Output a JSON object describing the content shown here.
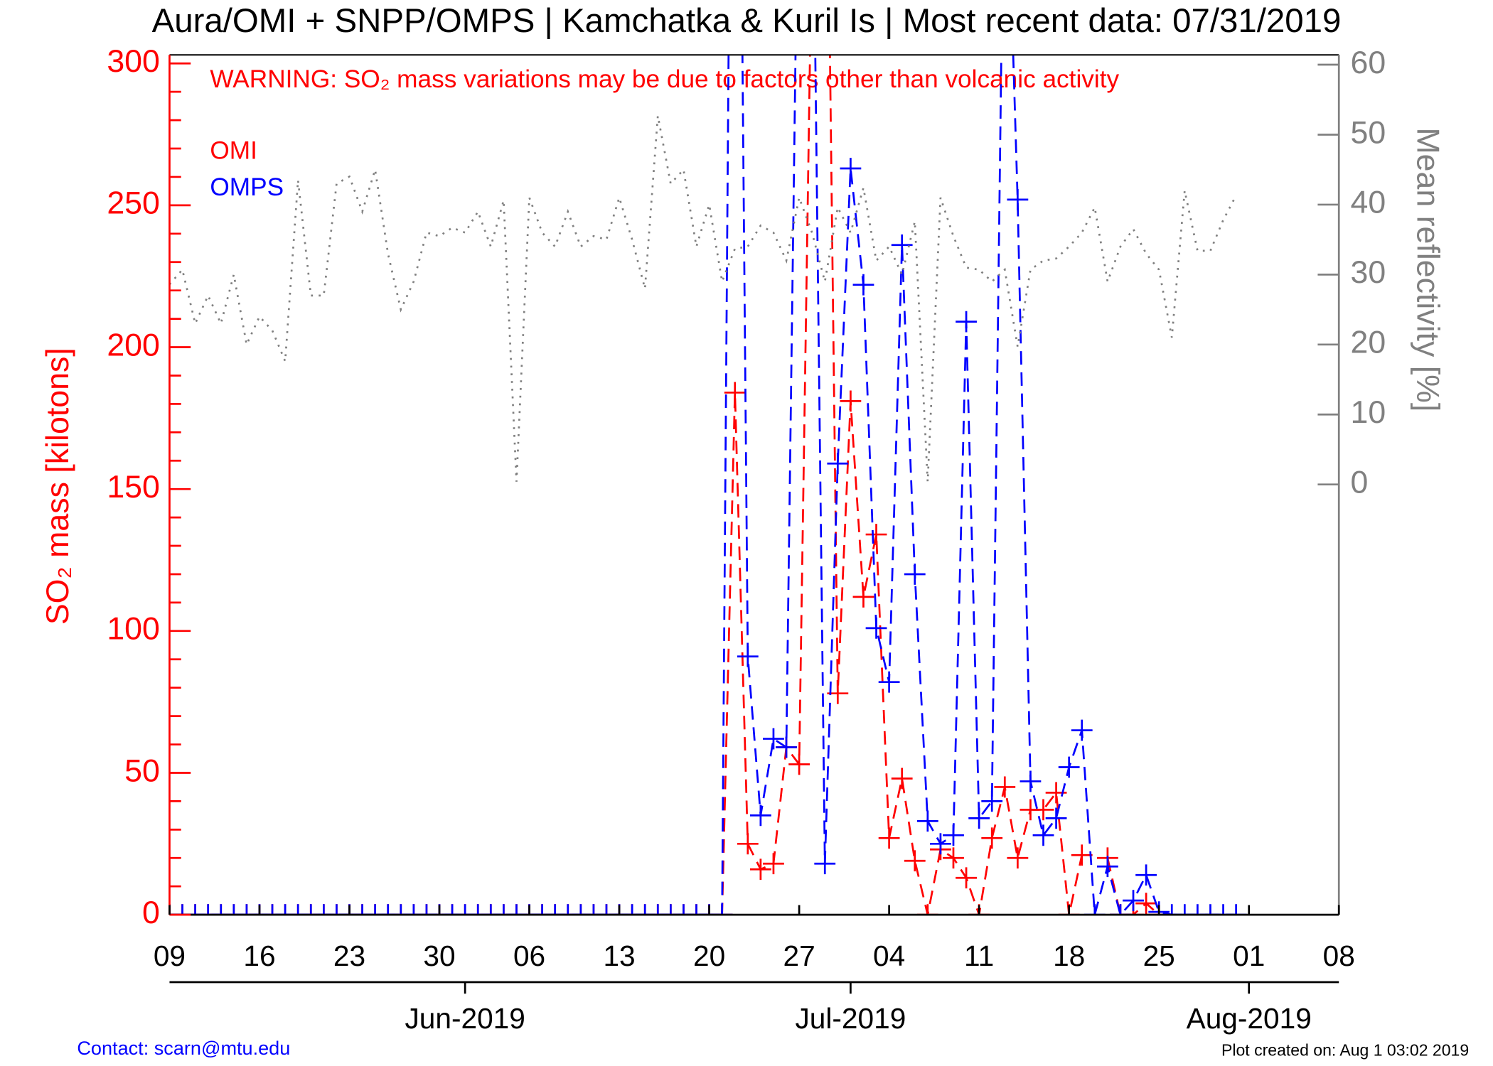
{
  "chart_data": {
    "type": "line",
    "title": "Aura/OMI + SNPP/OMPS | Kamchatka & Kuril Is | Most recent data: 07/31/2019",
    "annotation": "WARNING: SO₂ mass variations may be due to factors other than volcanic activity",
    "ylabel": "SO₂ mass [kilotons]",
    "y2label": "Mean reflectivity [%]",
    "contact": "Contact: scarn@mtu.edu",
    "created": "Plot created on: Aug  1 03:02 2019",
    "x": [
      "2019-05-09",
      "2019-05-10",
      "2019-05-11",
      "2019-05-12",
      "2019-05-13",
      "2019-05-14",
      "2019-05-15",
      "2019-05-16",
      "2019-05-17",
      "2019-05-18",
      "2019-05-19",
      "2019-05-20",
      "2019-05-21",
      "2019-05-22",
      "2019-05-23",
      "2019-05-24",
      "2019-05-25",
      "2019-05-26",
      "2019-05-27",
      "2019-05-28",
      "2019-05-29",
      "2019-05-30",
      "2019-05-31",
      "2019-06-01",
      "2019-06-02",
      "2019-06-03",
      "2019-06-04",
      "2019-06-05",
      "2019-06-06",
      "2019-06-07",
      "2019-06-08",
      "2019-06-09",
      "2019-06-10",
      "2019-06-11",
      "2019-06-12",
      "2019-06-13",
      "2019-06-14",
      "2019-06-15",
      "2019-06-16",
      "2019-06-17",
      "2019-06-18",
      "2019-06-19",
      "2019-06-20",
      "2019-06-21",
      "2019-06-22",
      "2019-06-23",
      "2019-06-24",
      "2019-06-25",
      "2019-06-26",
      "2019-06-27",
      "2019-06-28",
      "2019-06-29",
      "2019-06-30",
      "2019-07-01",
      "2019-07-02",
      "2019-07-03",
      "2019-07-04",
      "2019-07-05",
      "2019-07-06",
      "2019-07-07",
      "2019-07-08",
      "2019-07-09",
      "2019-07-10",
      "2019-07-11",
      "2019-07-12",
      "2019-07-13",
      "2019-07-14",
      "2019-07-15",
      "2019-07-16",
      "2019-07-17",
      "2019-07-18",
      "2019-07-19",
      "2019-07-20",
      "2019-07-21",
      "2019-07-22",
      "2019-07-23",
      "2019-07-24",
      "2019-07-25",
      "2019-07-26",
      "2019-07-27",
      "2019-07-28",
      "2019-07-29",
      "2019-07-30",
      "2019-07-31"
    ],
    "series": [
      {
        "name": "OMI",
        "color": "#ff0000",
        "line_style": "dashed",
        "marker": "+",
        "values": [
          0,
          0,
          0,
          0,
          0,
          0,
          0,
          0,
          0,
          0,
          0,
          0,
          0,
          0,
          0,
          0,
          0,
          0,
          0,
          0,
          0,
          0,
          0,
          0,
          0,
          0,
          0,
          0,
          0,
          0,
          0,
          0,
          0,
          0,
          0,
          0,
          0,
          0,
          0,
          0,
          0,
          0,
          0,
          0,
          184,
          25,
          16,
          18,
          59,
          53,
          350,
          450,
          78,
          181,
          112,
          134,
          27,
          48,
          19,
          0,
          23,
          20,
          13,
          0,
          27,
          45,
          20,
          37,
          37,
          43,
          0,
          21,
          null,
          20,
          0,
          0,
          4,
          0,
          null,
          null,
          null,
          null,
          null,
          null
        ]
      },
      {
        "name": "OMPS",
        "color": "#0000ff",
        "line_style": "dashed",
        "marker": "+",
        "values": [
          0,
          0,
          0,
          0,
          0,
          0,
          0,
          0,
          0,
          0,
          0,
          0,
          0,
          0,
          0,
          0,
          0,
          0,
          0,
          0,
          0,
          0,
          0,
          0,
          0,
          0,
          0,
          0,
          0,
          0,
          0,
          0,
          0,
          0,
          0,
          0,
          0,
          0,
          0,
          0,
          0,
          0,
          0,
          0,
          600,
          91,
          35,
          62,
          59,
          400,
          400,
          18,
          159,
          263,
          222,
          101,
          82,
          236,
          120,
          33,
          25,
          28,
          209,
          34,
          40,
          400,
          252,
          47,
          28,
          34,
          52,
          65,
          0,
          17,
          0,
          5,
          14,
          1,
          0,
          0,
          0,
          0,
          0,
          0
        ]
      },
      {
        "color": "#808080",
        "line_style": "dotted",
        "axis": "y2",
        "values": [
          28.6,
          30.7,
          23,
          27,
          23,
          30,
          20,
          24,
          22,
          17.6,
          43.5,
          27,
          27,
          43,
          44,
          39,
          45,
          33,
          25,
          29,
          36,
          35.5,
          36.7,
          36,
          39,
          34,
          40.6,
          0.4,
          41,
          36,
          34,
          39,
          34,
          35.5,
          35,
          41,
          35,
          28,
          52.7,
          43,
          45,
          34,
          40,
          29,
          33.7,
          34,
          37,
          36,
          32,
          41,
          36,
          29,
          39.6,
          36,
          42.4,
          32,
          34,
          30,
          37.6,
          0.4,
          41,
          35.5,
          31,
          30.7,
          29,
          30.7,
          19.7,
          30.7,
          32,
          32.3,
          34,
          36,
          39.6,
          29,
          34,
          36.5,
          33,
          30.7,
          21,
          42,
          33.4,
          33.4,
          37.8,
          41.3
        ]
      }
    ],
    "xlim": [
      "2019-05-09",
      "2019-08-08"
    ],
    "xticks": [
      {
        "value": "2019-05-09",
        "label": "09"
      },
      {
        "value": "2019-05-16",
        "label": "16"
      },
      {
        "value": "2019-05-23",
        "label": "23"
      },
      {
        "value": "2019-05-30",
        "label": "30"
      },
      {
        "value": "2019-06-06",
        "label": "06"
      },
      {
        "value": "2019-06-13",
        "label": "13"
      },
      {
        "value": "2019-06-20",
        "label": "20"
      },
      {
        "value": "2019-06-27",
        "label": "27"
      },
      {
        "value": "2019-07-04",
        "label": "04"
      },
      {
        "value": "2019-07-11",
        "label": "11"
      },
      {
        "value": "2019-07-18",
        "label": "18"
      },
      {
        "value": "2019-07-25",
        "label": "25"
      },
      {
        "value": "2019-08-01",
        "label": "01"
      },
      {
        "value": "2019-08-08",
        "label": "08"
      }
    ],
    "month_ticks": [
      {
        "value": "2019-06-01",
        "label": "Jun-2019"
      },
      {
        "value": "2019-07-01",
        "label": "Jul-2019"
      },
      {
        "value": "2019-08-01",
        "label": "Aug-2019"
      }
    ],
    "ylim": [
      0,
      303
    ],
    "yticks": [
      0,
      50,
      100,
      150,
      200,
      250,
      300
    ],
    "yminorticks": [
      10,
      20,
      30,
      40,
      60,
      70,
      80,
      90,
      110,
      120,
      130,
      140,
      160,
      170,
      180,
      190,
      210,
      220,
      230,
      240,
      260,
      270,
      280,
      290
    ],
    "y2lim": [
      -61.5,
      61.4
    ],
    "y2ticks": [
      0,
      10,
      20,
      30,
      40,
      50,
      60
    ],
    "y_color": "#ff0000",
    "y2_color": "#808080",
    "annotation_color": "#ff0000",
    "contact_color": "#0000ff"
  }
}
